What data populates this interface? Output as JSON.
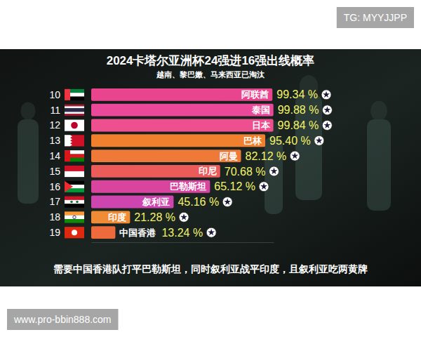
{
  "chart_data": {
    "type": "bar",
    "orientation": "horizontal",
    "title": "2024卡塔尔亚洲杯24强进16强出线概率",
    "subtitle": "越南、黎巴嫩、马来西亚已淘汰",
    "categories": [
      "阿联酋",
      "泰国",
      "日本",
      "巴林",
      "阿曼",
      "印尼",
      "巴勒斯坦",
      "叙利亚",
      "印度",
      "中国香港"
    ],
    "ranks": [
      10,
      11,
      12,
      13,
      14,
      15,
      16,
      17,
      18,
      19
    ],
    "values": [
      99.34,
      99.88,
      99.84,
      95.4,
      82.12,
      70.68,
      65.12,
      45.16,
      21.28,
      13.24
    ],
    "value_labels": [
      "99.34 %",
      "99.88 %",
      "99.84 %",
      "95.40 %",
      "82.12 %",
      "70.68 %",
      "65.12 %",
      "45.16 %",
      "21.28 %",
      "13.24 %"
    ],
    "colors": [
      "#e9458e",
      "#ea4898",
      "#ee4f8f",
      "#f0802e",
      "#ef7a38",
      "#ec5a5a",
      "#d9449f",
      "#cf45b0",
      "#f08c35",
      "#ec6a3c"
    ],
    "xlim": [
      0,
      100
    ],
    "data_labels": true,
    "tick_labels": false,
    "grid": false,
    "annotations": [
      "需要中国香港队打平巴勒斯坦，同时叙利亚战平印度，且叙利亚吃两黄牌",
      "TG: MYYJJPP",
      "www.pro-bbin888.com"
    ]
  }
}
